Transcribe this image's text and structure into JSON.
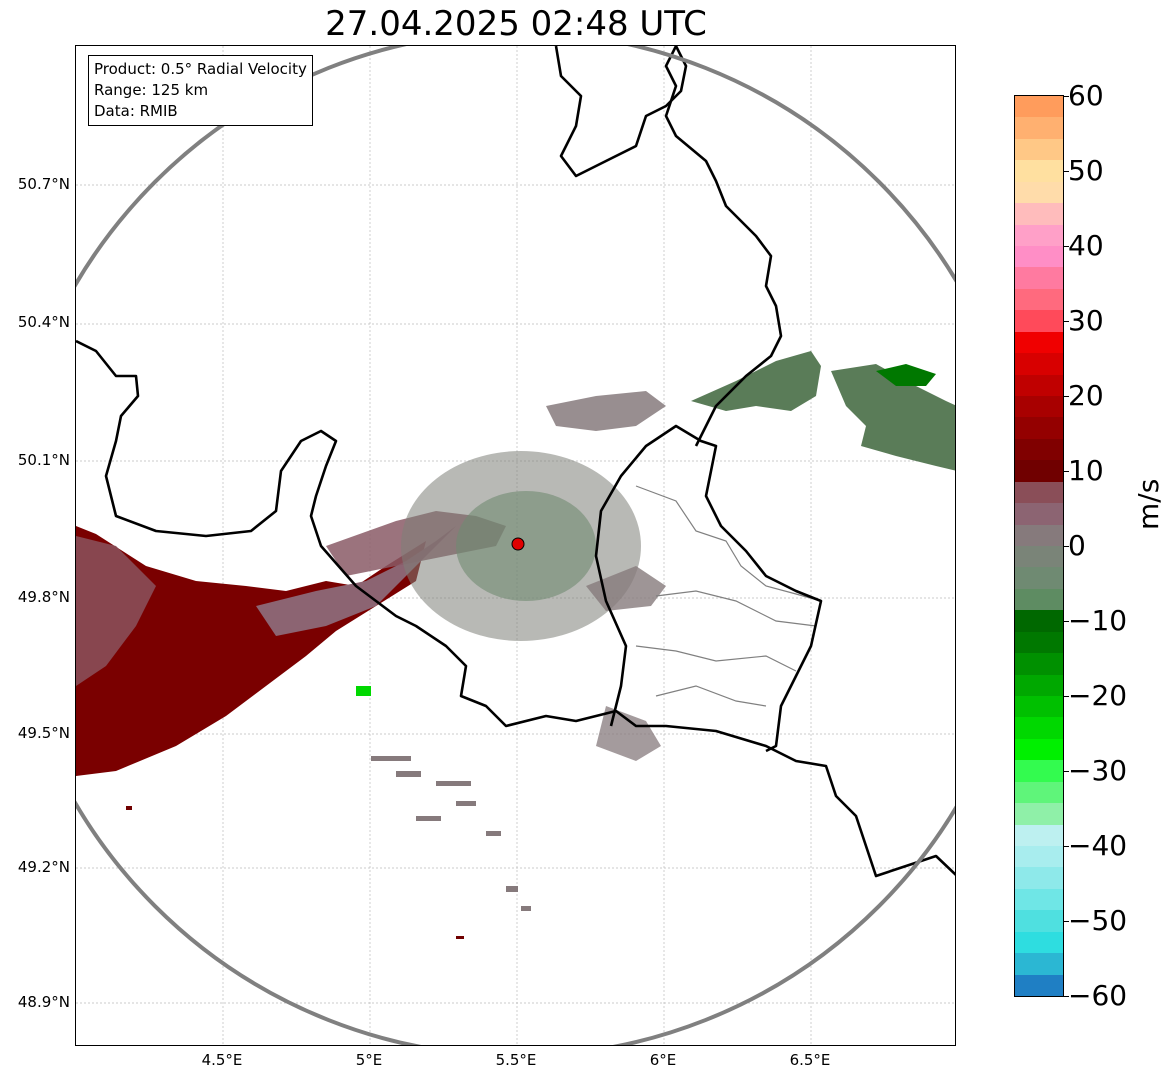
{
  "title": "27.04.2025 02:48 UTC",
  "info_box": {
    "product": "Product: 0.5° Radial Velocity",
    "range": "Range: 125 km",
    "source": "Data: RMIB"
  },
  "map": {
    "lat_ticks": [
      "50.7°N",
      "50.4°N",
      "50.1°N",
      "49.8°N",
      "49.5°N",
      "49.2°N",
      "48.9°N"
    ],
    "lon_ticks": [
      "4.5°E",
      "5°E",
      "5.5°E",
      "6°E",
      "6.5°E"
    ],
    "radar_site": {
      "lon": 5.5,
      "lat": 49.91,
      "marker_color": "#e00000"
    },
    "range_ring_color": "#808080",
    "border_color": "#000000",
    "admin_border_color": "#808080"
  },
  "colorbar": {
    "label": "m/s",
    "ticks": [
      "60",
      "50",
      "40",
      "30",
      "20",
      "10",
      "0",
      "−10",
      "−20",
      "−30",
      "−40",
      "−50",
      "−60"
    ],
    "min": -60,
    "max": 60,
    "colors": [
      "#1f7fc4",
      "#2bb7d3",
      "#2edde0",
      "#4fe0e0",
      "#6fe6e6",
      "#8ee9ea",
      "#a8edee",
      "#bdf0f0",
      "#8ff0a8",
      "#5ff57a",
      "#33fb4f",
      "#00f000",
      "#00d800",
      "#00c000",
      "#00a800",
      "#009000",
      "#007800",
      "#006800",
      "#5e8c62",
      "#6f8a72",
      "#7a8478",
      "#867a7c",
      "#8c6472",
      "#8a4e58",
      "#700000",
      "#800000",
      "#940000",
      "#a80000",
      "#c00000",
      "#d80000",
      "#f00000",
      "#ff4a5a",
      "#ff6a7e",
      "#ff7aa0",
      "#ff8ec6",
      "#ffa0c8",
      "#ffbcbc",
      "#ffdcaa",
      "#ffe0a0",
      "#ffc886",
      "#ffb070",
      "#ff9c5c"
    ]
  }
}
